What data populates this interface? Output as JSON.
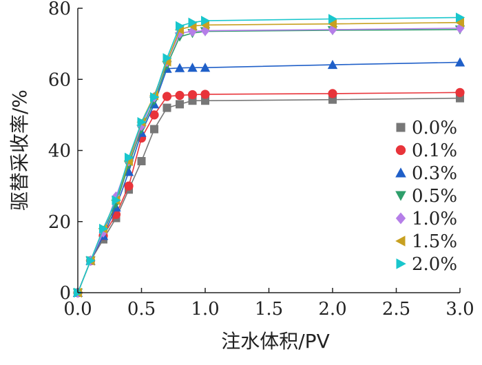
{
  "chart_data": {
    "type": "line",
    "xlabel": "注水体积/PV",
    "ylabel": "驱替采收率/%",
    "xlim": [
      0,
      3
    ],
    "ylim": [
      0,
      80
    ],
    "x_ticks": [
      "0.0",
      "0.5",
      "1.0",
      "1.5",
      "2.0",
      "2.5",
      "3.0"
    ],
    "y_ticks": [
      "0",
      "20",
      "40",
      "60",
      "80"
    ],
    "grid": false,
    "legend_position": "right",
    "series": [
      {
        "name": "0.0%",
        "marker": "square",
        "color": "#777777",
        "x": [
          0,
          0.1,
          0.2,
          0.3,
          0.4,
          0.5,
          0.6,
          0.7,
          0.8,
          0.9,
          1.0,
          2.0,
          3.0
        ],
        "y": [
          0,
          9,
          15,
          21,
          29,
          37,
          46,
          52,
          53,
          54,
          54,
          54.3,
          54.7
        ]
      },
      {
        "name": "0.1%",
        "marker": "circle",
        "color": "#e8343a",
        "x": [
          0,
          0.1,
          0.2,
          0.3,
          0.4,
          0.5,
          0.6,
          0.7,
          0.8,
          0.9,
          1.0,
          2.0,
          3.0
        ],
        "y": [
          0,
          9,
          16,
          22,
          30,
          43.5,
          50,
          55.2,
          55.5,
          55.7,
          55.8,
          56,
          56.3
        ]
      },
      {
        "name": "0.3%",
        "marker": "triangle-up",
        "color": "#1f5fc8",
        "x": [
          0,
          0.1,
          0.2,
          0.3,
          0.4,
          0.5,
          0.6,
          0.7,
          0.8,
          0.9,
          1.0,
          2.0,
          3.0
        ],
        "y": [
          0,
          9,
          16,
          24,
          34,
          45,
          53,
          63,
          63.2,
          63.3,
          63.3,
          64.1,
          64.8
        ]
      },
      {
        "name": "0.5%",
        "marker": "triangle-down",
        "color": "#2e9e6b",
        "x": [
          0,
          0.1,
          0.2,
          0.3,
          0.4,
          0.5,
          0.6,
          0.7,
          0.8,
          0.9,
          1.0,
          2.0,
          3.0
        ],
        "y": [
          0,
          9,
          17,
          25,
          36,
          46,
          54,
          64,
          72,
          73,
          73.5,
          73.8,
          74
        ]
      },
      {
        "name": "1.0%",
        "marker": "diamond",
        "color": "#b57ee8",
        "x": [
          0,
          0.1,
          0.2,
          0.3,
          0.4,
          0.5,
          0.6,
          0.7,
          0.8,
          0.9,
          1.0,
          2.0,
          3.0
        ],
        "y": [
          0,
          9,
          17,
          27,
          37,
          47,
          55,
          65,
          73,
          73.5,
          73.7,
          74,
          74.4
        ]
      },
      {
        "name": "1.5%",
        "marker": "triangle-left",
        "color": "#c8a020",
        "x": [
          0,
          0.1,
          0.2,
          0.3,
          0.4,
          0.5,
          0.6,
          0.7,
          0.8,
          0.9,
          1.0,
          2.0,
          3.0
        ],
        "y": [
          0,
          9,
          18,
          26,
          37,
          48,
          55.5,
          65,
          74,
          75,
          75.3,
          75.6,
          76
        ]
      },
      {
        "name": "2.0%",
        "marker": "triangle-right",
        "color": "#19c6cc",
        "x": [
          0,
          0.1,
          0.2,
          0.3,
          0.4,
          0.5,
          0.6,
          0.7,
          0.8,
          0.9,
          1.0,
          2.0,
          3.0
        ],
        "y": [
          0,
          9,
          18,
          26,
          38,
          48,
          55,
          66,
          75,
          76,
          76.5,
          77,
          77.4
        ]
      }
    ]
  }
}
